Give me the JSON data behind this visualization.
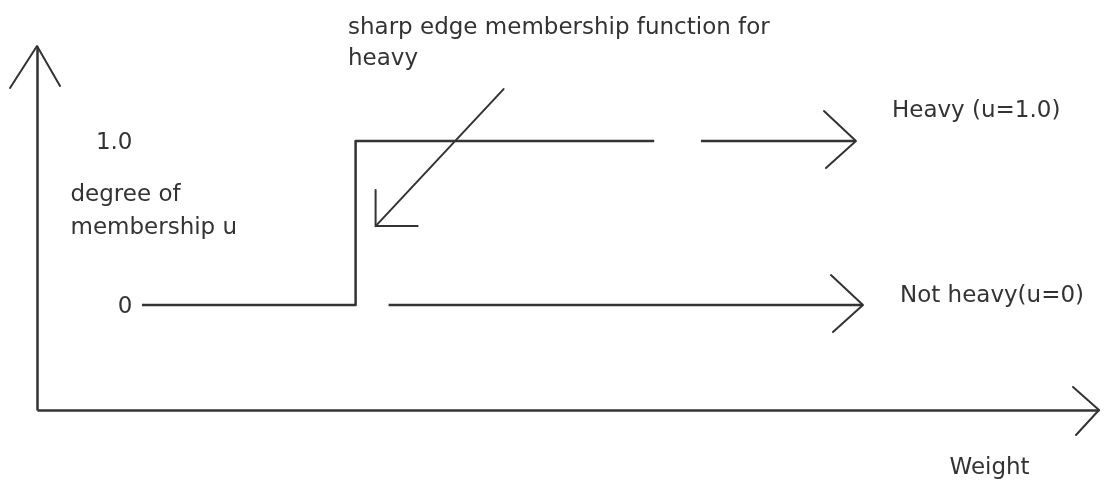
{
  "chart_data": {
    "type": "step",
    "categories": [
      null,
      null,
      null,
      null,
      null,
      null,
      null,
      null,
      null,
      null,
      null,
      null,
      null,
      null,
      null,
      null,
      null,
      null,
      null,
      null,
      null,
      null,
      null,
      null,
      null
    ],
    "values": [
      null,
      null,
      0,
      0,
      0,
      0,
      0,
      1,
      1,
      1,
      1,
      1,
      1,
      1,
      1,
      null,
      null,
      null,
      null,
      null,
      null,
      null,
      null,
      null,
      null
    ],
    "color": "#333333",
    "xlabel": "Weight",
    "ylabel": "degree of membership u",
    "annotations": [
      "sharp edge membership function for heavy"
    ],
    "ref_lines": [
      {
        "axis": "y",
        "value": 1,
        "label": "Heavy (u=1.0)"
      },
      {
        "axis": "y",
        "value": 0,
        "label": "Not heavy(u=0)"
      }
    ],
    "ylim": [
      -0.64,
      1.58
    ],
    "yticks": [
      0,
      {
        "value": 1,
        "label": "1.0"
      }
    ],
    "tick_labels": "y"
  }
}
